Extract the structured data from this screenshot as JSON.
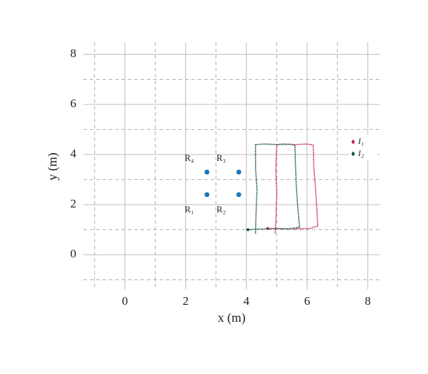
{
  "chart_data": {
    "type": "scatter",
    "xlabel": "x (m)",
    "ylabel": "y (m)",
    "xlim": [
      -1.37,
      8.4
    ],
    "ylim": [
      -1.38,
      8.48
    ],
    "xticks": [
      0,
      2,
      4,
      6,
      8
    ],
    "yticks": [
      0,
      2,
      4,
      6,
      8
    ],
    "xminor": [
      -1,
      1,
      3,
      5,
      7
    ],
    "yminor": [
      -1,
      1,
      3,
      5,
      7
    ],
    "grid": true,
    "legend": "right",
    "points": [
      {
        "label": "R₁",
        "x": 2.7,
        "y": 2.4,
        "color": "#1f77b4"
      },
      {
        "label": "R₂",
        "x": 3.75,
        "y": 2.4,
        "color": "#1f77b4"
      },
      {
        "label": "R₃",
        "x": 3.75,
        "y": 3.3,
        "color": "#1f77b4"
      },
      {
        "label": "R₄",
        "x": 2.7,
        "y": 3.3,
        "color": "#1f77b4"
      }
    ],
    "series": [
      {
        "name": "I₁",
        "color": "#c8155a",
        "x": [
          4.95,
          4.98,
          5.0,
          4.97,
          5.0,
          5.2,
          5.6,
          6.0,
          6.2,
          6.22,
          6.28,
          6.32,
          6.35,
          6.1,
          5.6,
          5.1,
          4.7
        ],
        "y": [
          0.85,
          1.6,
          2.5,
          3.4,
          4.4,
          4.42,
          4.4,
          4.42,
          4.38,
          3.5,
          2.6,
          1.8,
          1.15,
          1.05,
          1.03,
          1.05,
          1.05
        ]
      },
      {
        "name": "I₂",
        "color": "#0b4a36",
        "x": [
          4.3,
          4.32,
          4.35,
          4.3,
          4.3,
          4.6,
          5.0,
          5.4,
          5.6,
          5.62,
          5.65,
          5.7,
          5.75,
          5.4,
          5.0,
          4.5,
          4.05
        ],
        "y": [
          0.85,
          1.7,
          2.6,
          3.5,
          4.4,
          4.42,
          4.4,
          4.41,
          4.38,
          3.5,
          2.6,
          1.8,
          1.1,
          1.03,
          1.04,
          1.03,
          1.0
        ]
      }
    ]
  }
}
